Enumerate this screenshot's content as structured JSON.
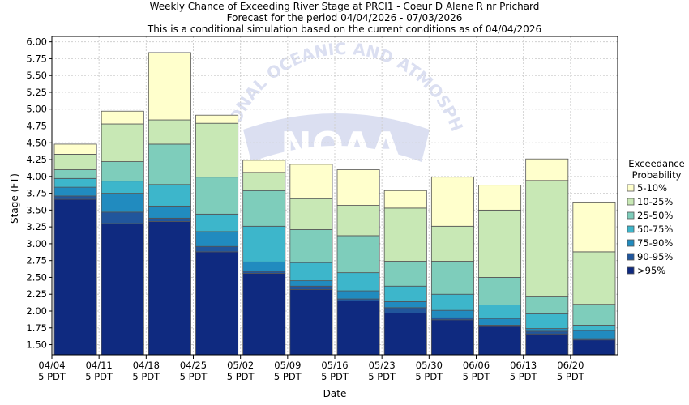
{
  "chart_data": {
    "type": "bar",
    "stacked": true,
    "title_lines": [
      "Weekly Chance of Exceeding River Stage at PRCI1 - Coeur D Alene R nr Prichard",
      "Forecast for the period 04/04/2026 - 07/03/2026",
      "This is a conditional simulation based on the current conditions as of 04/04/2026"
    ],
    "xlabel": "Date",
    "ylabel": "Stage (FT)",
    "ylim": [
      1.35,
      6.08
    ],
    "yticks": [
      1.5,
      1.75,
      2.0,
      2.25,
      2.5,
      2.75,
      3.0,
      3.25,
      3.5,
      3.75,
      4.0,
      4.25,
      4.5,
      4.75,
      5.0,
      5.25,
      5.5,
      5.75,
      6.0
    ],
    "ytick_labels": [
      "1.50",
      "1.75",
      "2.00",
      "2.25",
      "2.50",
      "2.75",
      "3.00",
      "3.25",
      "3.50",
      "3.75",
      "4.00",
      "4.25",
      "4.50",
      "4.75",
      "5.00",
      "5.25",
      "5.50",
      "5.75",
      "6.00"
    ],
    "x_ticks": [
      {
        "date": "04/04",
        "tz": "5 PDT"
      },
      {
        "date": "04/11",
        "tz": "5 PDT"
      },
      {
        "date": "04/18",
        "tz": "5 PDT"
      },
      {
        "date": "04/25",
        "tz": "5 PDT"
      },
      {
        "date": "05/02",
        "tz": "5 PDT"
      },
      {
        "date": "05/09",
        "tz": "5 PDT"
      },
      {
        "date": "05/16",
        "tz": "5 PDT"
      },
      {
        "date": "05/23",
        "tz": "5 PDT"
      },
      {
        "date": "05/30",
        "tz": "5 PDT"
      },
      {
        "date": "06/06",
        "tz": "5 PDT"
      },
      {
        "date": "06/13",
        "tz": "5 PDT"
      },
      {
        "date": "06/20",
        "tz": "5 PDT"
      }
    ],
    "legend": {
      "title_lines": [
        "Exceedance",
        "Probability"
      ],
      "placement": "right",
      "entries": [
        "5-10%",
        "10-25%",
        "25-50%",
        "50-75%",
        "75-90%",
        "90-95%",
        ">95%"
      ]
    },
    "band_colors": [
      "#0f2a80",
      "#21569c",
      "#218bbf",
      "#3db6cb",
      "#7ecdbb",
      "#c8e8b5",
      "#ffffcc"
    ],
    "weeks": [
      {
        "week": "04/04",
        "stages": [
          3.66,
          3.71,
          3.84,
          3.97,
          4.1,
          4.33,
          4.48
        ]
      },
      {
        "week": "04/11",
        "stages": [
          3.3,
          3.47,
          3.75,
          3.93,
          4.22,
          4.78,
          4.97
        ]
      },
      {
        "week": "04/18",
        "stages": [
          3.33,
          3.38,
          3.56,
          3.88,
          4.48,
          4.84,
          5.84
        ]
      },
      {
        "week": "04/25",
        "stages": [
          2.88,
          2.96,
          3.18,
          3.44,
          3.99,
          4.79,
          4.91
        ]
      },
      {
        "week": "05/02",
        "stages": [
          2.56,
          2.59,
          2.73,
          3.26,
          3.79,
          4.06,
          4.24
        ]
      },
      {
        "week": "05/09",
        "stages": [
          2.32,
          2.37,
          2.45,
          2.72,
          3.21,
          3.67,
          4.18
        ]
      },
      {
        "week": "05/16",
        "stages": [
          2.15,
          2.18,
          2.3,
          2.57,
          3.12,
          3.57,
          4.1
        ]
      },
      {
        "week": "05/23",
        "stages": [
          1.97,
          2.05,
          2.14,
          2.37,
          2.74,
          3.53,
          3.79
        ]
      },
      {
        "week": "05/30",
        "stages": [
          1.87,
          1.9,
          2.01,
          2.25,
          2.74,
          3.26,
          3.99
        ]
      },
      {
        "week": "06/06",
        "stages": [
          1.77,
          1.79,
          1.89,
          2.09,
          2.5,
          3.5,
          3.87
        ]
      },
      {
        "week": "06/13",
        "stages": [
          1.66,
          1.7,
          1.74,
          1.96,
          2.21,
          3.94,
          4.26
        ]
      },
      {
        "week": "06/20",
        "stages": [
          1.57,
          1.59,
          1.71,
          1.79,
          2.1,
          2.88,
          3.62
        ]
      }
    ],
    "background_logo_text": "NOAA",
    "background_logo_arc_text": "NATIONAL OCEANIC AND ATMOSPHERIC ADMINISTRATION",
    "grid": true
  }
}
